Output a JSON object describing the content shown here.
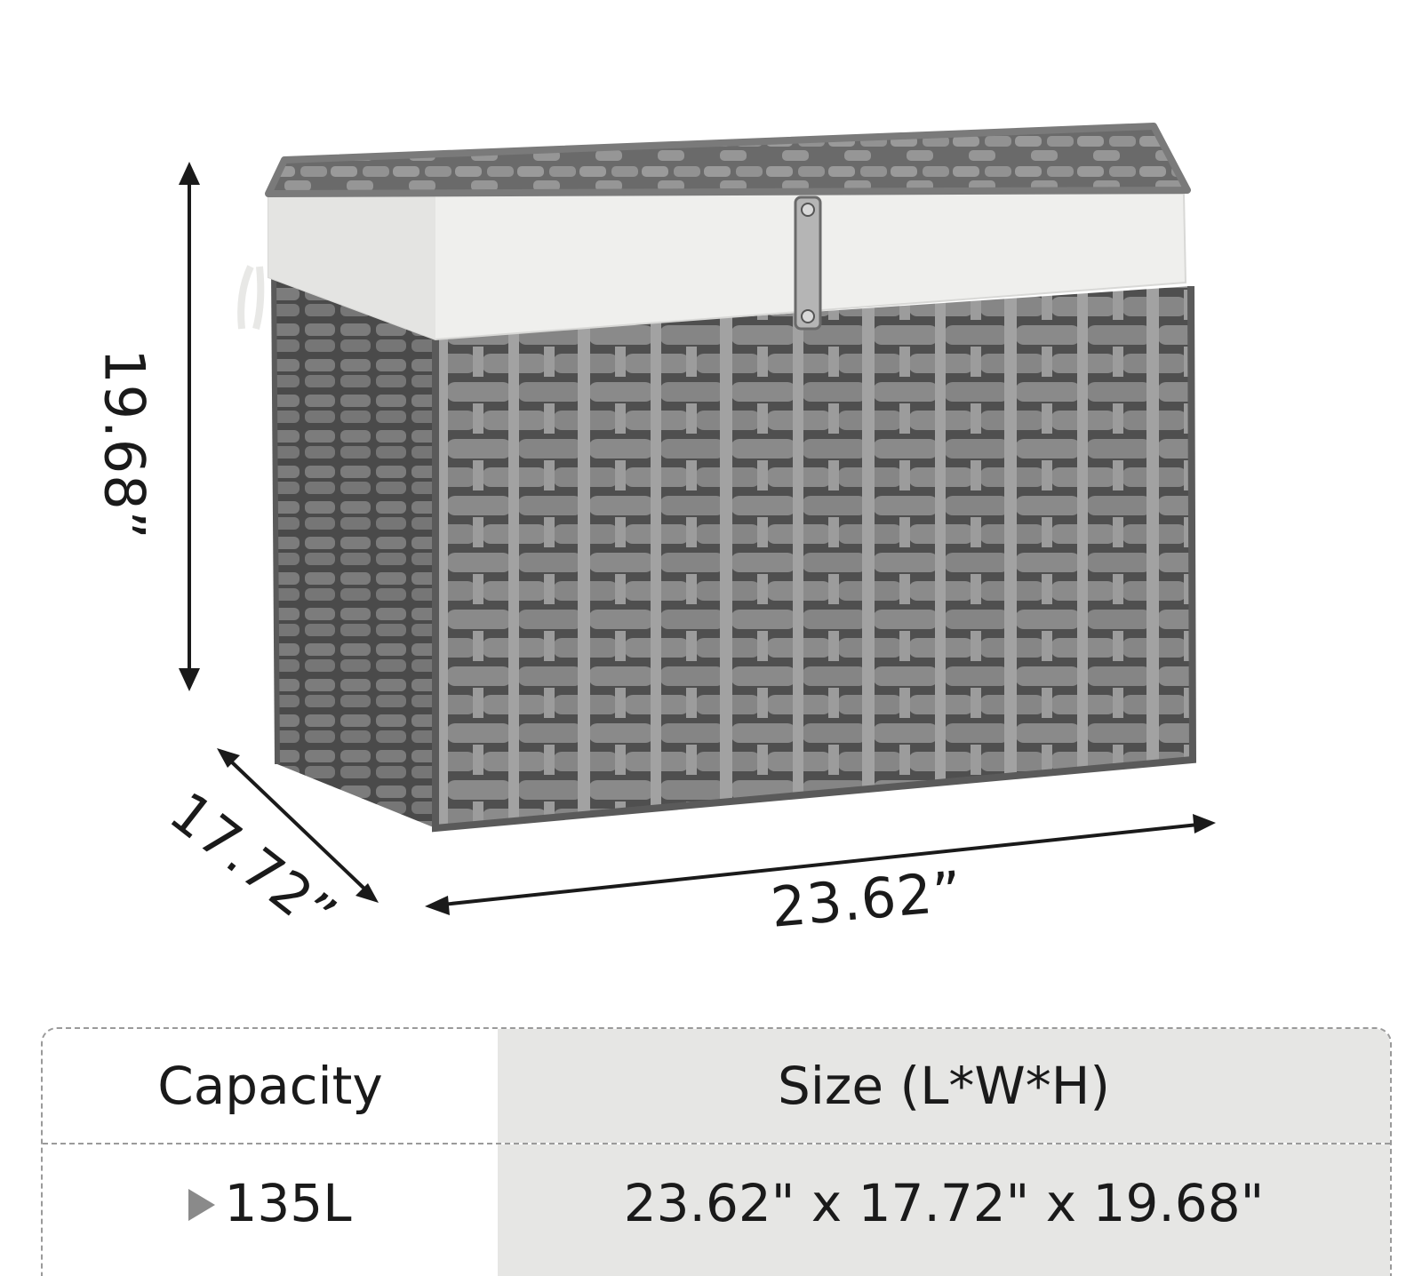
{
  "dimensions": {
    "height": "19.68”",
    "depth": "17.72”",
    "length": "23.62”"
  },
  "table": {
    "headers": {
      "capacity": "Capacity",
      "size": "Size (L*W*H)"
    },
    "row": {
      "capacity": "135L",
      "size": "23.62\" x 17.72\" x 19.68\""
    }
  },
  "colors": {
    "basket_weave": "#7d7d7d",
    "basket_dark": "#5a5a5a",
    "liner": "#efefed",
    "table_shade": "#e6e6e4",
    "arrow": "#1a1a1a"
  },
  "icons": [
    "triangle-marker-icon",
    "latch-icon"
  ]
}
